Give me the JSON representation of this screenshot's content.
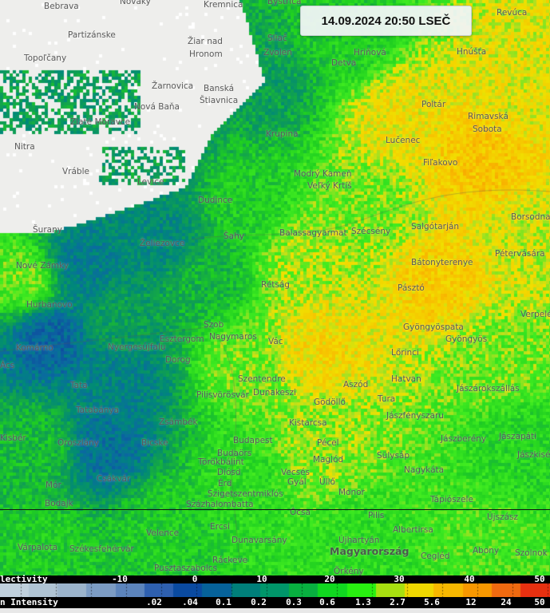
{
  "timestamp": "14.09.2024 20:50 LSEČ",
  "legend": {
    "reflectivity_label": "lectivity",
    "reflectivity_ticks": [
      "-10",
      "0",
      "10",
      "20",
      "30",
      "40",
      "50"
    ],
    "intensity_label": "n Intensity",
    "intensity_ticks": [
      ".02",
      ".04",
      "0.1",
      "0.2",
      "0.3",
      "0.6",
      "1.3",
      "2.7",
      "5.6",
      "12",
      "24",
      "50"
    ],
    "colors": [
      "#c0d0dc",
      "#b0c4d4",
      "#9cb4cc",
      "#7c9cc4",
      "#5c84bc",
      "#2e60b0",
      "#0a4aa0",
      "#06629a",
      "#007f7a",
      "#00966a",
      "#08b040",
      "#10d820",
      "#28f010",
      "#a8e010",
      "#f0d800",
      "#f8b800",
      "#f89800",
      "#f06a10",
      "#e83010"
    ]
  },
  "places": [
    "Bebrava",
    "Nováky",
    "Kremnica",
    "Bystrica",
    "Revúca",
    "Partizánske",
    "Žiar nad",
    "Hronom",
    "Sliač",
    "Zvolen",
    "Hriňová",
    "Hnúšťa",
    "Topoľčany",
    "Detva",
    "Žarnovica",
    "Banská",
    "Štiavnica",
    "Poltár",
    "Nová Baňa",
    "Rimavská",
    "Sobota",
    "Zlaté Moravce",
    "Krupina",
    "Lučenec",
    "Nitra",
    "Fiľakovo",
    "Vráble",
    "Modrý Kameň",
    "Levice",
    "Veľký Krtíš",
    "Dudince",
    "Šurany",
    "Šahy",
    "Balassagyarmat",
    "Szécsény",
    "Salgótarján",
    "Borsodna",
    "Želiezovce",
    "Pétervására",
    "Nové Zámky",
    "Bátonyterenye",
    "Rétság",
    "Pásztó",
    "Hurbanovo",
    "Verpelét",
    "Szob",
    "Gyöngyöspata",
    "Esztergom",
    "Nagymaros",
    "Vác",
    "Gyöngyös",
    "Komárno",
    "Nyergesújfalu",
    "Lőrinci",
    "Dorog",
    "Ács",
    "Szentendre",
    "Hatvan",
    "Tata",
    "Aszód",
    "Jászárokszállás",
    "Pilisvörösvár",
    "Dunakeszi",
    "Gödöllő",
    "Tura",
    "Tatabánya",
    "Zsámbék",
    "Kistarcsa",
    "Jászfényszaru",
    "Kisbér",
    "Oroszlány",
    "Bicske",
    "Budapest",
    "Pécel",
    "Jászberény",
    "Jászapáti",
    "Budaörs",
    "Sülysáp",
    "Jászkisér",
    "Törökbálint",
    "Maglód",
    "Nagykáta",
    "Csákvár",
    "Diósd",
    "Vecsés",
    "Gyál",
    "Érd",
    "Üllő",
    "Mór",
    "Monor",
    "Szigetszentmiklós",
    "Tápiószele",
    "Bodajk",
    "Százhalombatta",
    "Ócsa",
    "Pilis",
    "Újszász",
    "Albertirsa",
    "Ercsi",
    "Dunavarsány",
    "Velence",
    "Újhartyán",
    "Szolnok",
    "Várpalota",
    "Székesfehérvár",
    "Magyarország",
    "Cegléd",
    "Abony",
    "Ráckeve",
    "Pusztaszabolcs",
    "Örkény"
  ]
}
